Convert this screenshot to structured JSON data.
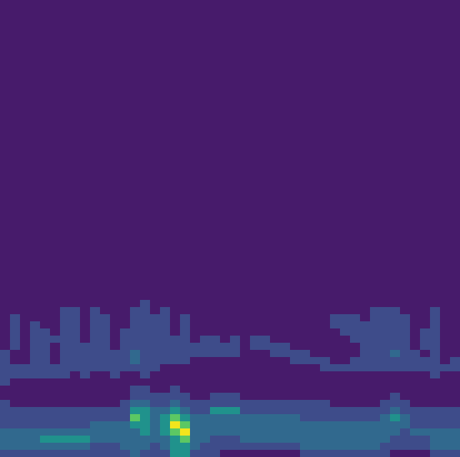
{
  "chart_data": {
    "type": "heatmap",
    "tick_labels": false,
    "grid": false,
    "xlim": [
      0,
      46
    ],
    "ylim": [
      0,
      64
    ],
    "color_range": [
      0,
      5
    ],
    "colors": [
      "#471b6b",
      "#3e4c8a",
      "#31698e",
      "#20928c",
      "#5cc863",
      "#f2e51d"
    ],
    "x": [
      0,
      1,
      2,
      3,
      4,
      5,
      6,
      7,
      8,
      9,
      10,
      11,
      12,
      13,
      14,
      15,
      16,
      17,
      18,
      19,
      20,
      21,
      22,
      23,
      24,
      25,
      26,
      27,
      28,
      29,
      30,
      31,
      32,
      33,
      34,
      35,
      36,
      37,
      38,
      39,
      40,
      41,
      42,
      43,
      44,
      45
    ],
    "y": [
      0,
      1,
      2,
      3,
      4,
      5,
      6,
      7,
      8,
      9,
      10,
      11,
      12,
      13,
      14,
      15,
      16,
      17,
      18,
      19,
      20,
      21
    ],
    "z": [
      [
        1,
        2,
        2,
        2,
        1,
        1,
        1,
        1,
        0,
        0,
        1,
        1,
        1,
        1,
        1,
        0,
        0,
        0,
        0,
        0,
        0,
        0
      ],
      [
        1,
        2,
        2,
        2,
        1,
        1,
        1,
        0,
        0,
        0,
        0,
        1,
        1,
        0,
        0,
        1,
        1,
        1,
        1,
        1,
        0,
        0
      ],
      [
        1,
        2,
        2,
        2,
        1,
        1,
        1,
        0,
        0,
        0,
        0,
        1,
        1,
        0,
        0,
        0,
        0,
        0,
        0,
        0,
        0,
        0
      ],
      [
        1,
        2,
        2,
        2,
        1,
        1,
        1,
        0,
        0,
        0,
        0,
        1,
        1,
        1,
        1,
        1,
        1,
        1,
        1,
        0,
        0,
        0
      ],
      [
        1,
        2,
        3,
        2,
        1,
        1,
        1,
        0,
        0,
        0,
        0,
        1,
        1,
        1,
        1,
        1,
        1,
        1,
        0,
        0,
        0,
        0
      ],
      [
        1,
        2,
        3,
        2,
        1,
        1,
        1,
        0,
        0,
        0,
        0,
        1,
        1,
        0,
        0,
        0,
        1,
        0,
        0,
        0,
        0,
        0
      ],
      [
        1,
        2,
        3,
        2,
        1,
        1,
        1,
        0,
        0,
        0,
        0,
        1,
        1,
        1,
        1,
        1,
        1,
        1,
        1,
        1,
        1,
        0
      ],
      [
        1,
        2,
        3,
        2,
        1,
        1,
        1,
        0,
        0,
        0,
        0,
        0,
        1,
        1,
        1,
        1,
        1,
        1,
        1,
        1,
        1,
        0
      ],
      [
        1,
        2,
        3,
        2,
        1,
        1,
        1,
        0,
        0,
        0,
        0,
        1,
        1,
        1,
        1,
        1,
        0,
        0,
        0,
        0,
        0,
        0
      ],
      [
        1,
        1,
        2,
        2,
        2,
        1,
        1,
        0,
        0,
        0,
        0,
        0,
        1,
        1,
        1,
        1,
        1,
        1,
        1,
        1,
        1,
        0
      ],
      [
        1,
        1,
        2,
        2,
        2,
        1,
        1,
        0,
        0,
        0,
        0,
        0,
        1,
        1,
        1,
        1,
        1,
        1,
        1,
        1,
        0,
        0
      ],
      [
        1,
        1,
        2,
        2,
        2,
        1,
        1,
        0,
        0,
        0,
        0,
        1,
        1,
        1,
        1,
        0,
        0,
        0,
        0,
        0,
        0,
        0
      ],
      [
        1,
        2,
        2,
        2,
        2,
        1,
        1,
        1,
        0,
        0,
        0,
        0,
        1,
        1,
        1,
        1,
        1,
        1,
        0,
        0,
        0,
        0
      ],
      [
        2,
        2,
        2,
        2,
        3,
        4,
        3,
        2,
        1,
        1,
        0,
        0,
        1,
        2,
        2,
        1,
        1,
        1,
        1,
        1,
        1,
        0
      ],
      [
        1,
        2,
        2,
        3,
        3,
        3,
        3,
        2,
        1,
        1,
        0,
        1,
        1,
        1,
        1,
        1,
        1,
        1,
        1,
        1,
        1,
        1
      ],
      [
        1,
        1,
        2,
        2,
        2,
        2,
        2,
        1,
        1,
        0,
        0,
        0,
        1,
        1,
        1,
        1,
        1,
        1,
        1,
        1,
        0,
        0
      ],
      [
        1,
        2,
        2,
        3,
        3,
        3,
        2,
        1,
        1,
        0,
        0,
        0,
        0,
        1,
        1,
        1,
        1,
        1,
        1,
        1,
        1,
        0
      ],
      [
        3,
        3,
        3,
        4,
        5,
        4,
        3,
        2,
        1,
        1,
        0,
        0,
        0,
        1,
        1,
        1,
        1,
        0,
        0,
        0,
        0,
        0
      ],
      [
        3,
        3,
        4,
        5,
        4,
        3,
        2,
        1,
        1,
        0,
        0,
        0,
        0,
        1,
        1,
        1,
        1,
        1,
        1,
        1,
        0,
        0
      ],
      [
        1,
        2,
        2,
        2,
        2,
        2,
        1,
        1,
        0,
        0,
        0,
        0,
        0,
        0,
        1,
        1,
        0,
        0,
        0,
        0,
        0,
        0
      ],
      [
        1,
        1,
        2,
        2,
        2,
        2,
        1,
        1,
        0,
        0,
        0,
        0,
        0,
        0,
        1,
        1,
        1,
        0,
        0,
        0,
        0,
        0
      ],
      [
        1,
        1,
        1,
        2,
        2,
        2,
        3,
        1,
        1,
        0,
        0,
        0,
        0,
        0,
        1,
        1,
        1,
        0,
        0,
        0,
        0,
        0
      ],
      [
        0,
        1,
        1,
        2,
        2,
        2,
        3,
        1,
        1,
        0,
        0,
        0,
        0,
        0,
        1,
        1,
        0,
        0,
        0,
        0,
        0,
        0
      ],
      [
        0,
        1,
        1,
        2,
        2,
        2,
        3,
        1,
        1,
        0,
        0,
        0,
        0,
        0,
        1,
        1,
        1,
        0,
        0,
        0,
        0,
        0
      ],
      [
        0,
        1,
        2,
        2,
        2,
        2,
        1,
        1,
        0,
        0,
        0,
        0,
        0,
        0,
        0,
        0,
        0,
        0,
        0,
        0,
        0,
        0
      ],
      [
        0,
        1,
        2,
        2,
        2,
        2,
        1,
        1,
        0,
        0,
        0,
        0,
        0,
        0,
        0,
        1,
        1,
        0,
        0,
        0,
        0,
        0
      ],
      [
        0,
        1,
        2,
        2,
        2,
        2,
        1,
        1,
        0,
        0,
        0,
        0,
        0,
        0,
        0,
        1,
        1,
        0,
        0,
        0,
        0,
        0
      ],
      [
        0,
        1,
        2,
        2,
        2,
        2,
        1,
        1,
        0,
        0,
        0,
        0,
        0,
        0,
        1,
        1,
        0,
        0,
        0,
        0,
        0,
        0
      ],
      [
        0,
        1,
        2,
        2,
        2,
        2,
        1,
        1,
        0,
        0,
        0,
        0,
        0,
        0,
        1,
        1,
        0,
        0,
        0,
        0,
        0,
        0
      ],
      [
        0,
        1,
        2,
        2,
        2,
        2,
        1,
        1,
        0,
        0,
        0,
        0,
        0,
        1,
        1,
        0,
        0,
        0,
        0,
        0,
        0,
        0
      ],
      [
        1,
        2,
        2,
        2,
        2,
        1,
        1,
        1,
        0,
        0,
        0,
        0,
        0,
        1,
        1,
        0,
        0,
        0,
        0,
        0,
        0,
        0
      ],
      [
        1,
        2,
        2,
        2,
        2,
        1,
        1,
        1,
        0,
        0,
        0,
        0,
        0,
        1,
        0,
        0,
        0,
        0,
        0,
        0,
        0,
        0
      ],
      [
        1,
        2,
        2,
        2,
        2,
        1,
        1,
        1,
        0,
        0,
        0,
        0,
        1,
        1,
        0,
        0,
        0,
        0,
        0,
        0,
        0,
        0
      ],
      [
        1,
        2,
        2,
        2,
        2,
        1,
        1,
        0,
        0,
        0,
        0,
        0,
        1,
        0,
        0,
        0,
        0,
        0,
        1,
        1,
        0,
        0
      ],
      [
        1,
        2,
        2,
        2,
        2,
        1,
        1,
        0,
        0,
        0,
        0,
        0,
        1,
        0,
        0,
        0,
        0,
        1,
        1,
        1,
        0,
        0
      ],
      [
        1,
        2,
        2,
        2,
        2,
        1,
        1,
        0,
        0,
        0,
        0,
        0,
        1,
        1,
        0,
        0,
        1,
        1,
        1,
        1,
        0,
        0
      ],
      [
        1,
        2,
        2,
        2,
        2,
        1,
        1,
        0,
        0,
        0,
        0,
        0,
        1,
        1,
        1,
        1,
        1,
        1,
        1,
        0,
        0,
        0
      ],
      [
        1,
        2,
        2,
        2,
        2,
        1,
        1,
        0,
        0,
        0,
        0,
        0,
        1,
        1,
        1,
        1,
        1,
        1,
        1,
        1,
        1,
        0
      ],
      [
        1,
        1,
        2,
        2,
        2,
        2,
        1,
        1,
        0,
        0,
        0,
        0,
        1,
        1,
        1,
        1,
        1,
        1,
        1,
        1,
        1,
        0
      ],
      [
        0,
        1,
        1,
        2,
        2,
        3,
        2,
        1,
        1,
        0,
        0,
        0,
        1,
        1,
        2,
        1,
        1,
        1,
        1,
        1,
        1,
        0
      ],
      [
        0,
        1,
        1,
        1,
        2,
        2,
        1,
        1,
        0,
        0,
        0,
        0,
        1,
        1,
        1,
        1,
        1,
        1,
        1,
        1,
        0,
        0
      ],
      [
        0,
        1,
        1,
        2,
        1,
        1,
        1,
        0,
        0,
        0,
        0,
        0,
        1,
        1,
        1,
        0,
        0,
        0,
        0,
        0,
        0,
        0
      ],
      [
        0,
        1,
        1,
        2,
        1,
        1,
        1,
        0,
        0,
        0,
        0,
        0,
        1,
        1,
        0,
        1,
        1,
        1,
        0,
        0,
        0,
        0
      ],
      [
        1,
        2,
        2,
        2,
        1,
        1,
        1,
        0,
        0,
        0,
        0,
        1,
        1,
        1,
        1,
        1,
        1,
        1,
        1,
        1,
        1,
        0
      ],
      [
        1,
        2,
        2,
        2,
        1,
        1,
        1,
        0,
        0,
        0,
        0,
        0,
        1,
        0,
        0,
        0,
        0,
        0,
        0,
        0,
        0,
        0
      ],
      [
        1,
        2,
        2,
        2,
        1,
        1,
        1,
        0,
        0,
        0,
        0,
        0,
        1,
        1,
        0,
        0,
        0,
        0,
        0,
        0,
        0,
        0
      ]
    ]
  }
}
